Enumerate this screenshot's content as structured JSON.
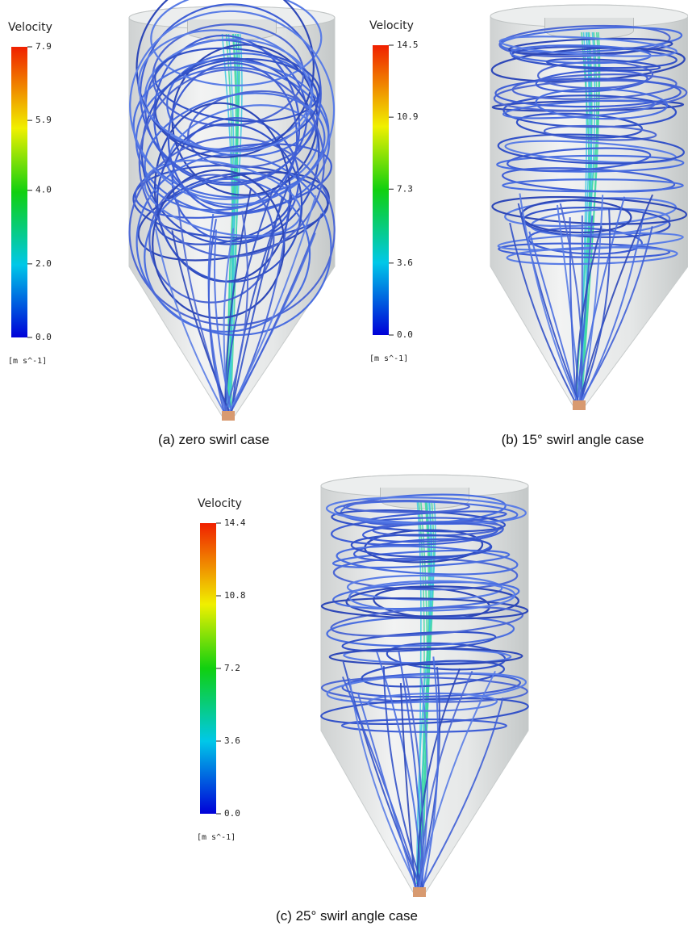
{
  "panels": [
    {
      "colorbar": {
        "title": "Velocity",
        "lim": [
          0,
          7.9
        ],
        "ticks": [
          {
            "value": 0,
            "label": "0.0"
          },
          {
            "value": 2,
            "label": "2.0"
          },
          {
            "value": 4,
            "label": "4.0"
          },
          5.9,
          7.9
        ],
        "unit": "[m s^-1]"
      },
      "caption": "(a) zero swirl case"
    },
    {
      "colorbar": {
        "title": "Velocity",
        "lim": [
          0,
          14.5
        ],
        "ticks": [
          {
            "value": 0,
            "label": "0.0"
          },
          3.6,
          7.3,
          10.9,
          14.5
        ],
        "unit": "[m s^-1]"
      },
      "caption": "(b) 15° swirl angle case"
    },
    {
      "colorbar": {
        "title": "Velocity",
        "lim": [
          0,
          14.4
        ],
        "ticks": [
          {
            "value": 0,
            "label": "0.0"
          },
          3.6,
          7.2,
          10.8,
          14.4
        ],
        "unit": "[m s^-1]"
      },
      "caption": "(c) 25° swirl angle case"
    }
  ]
}
